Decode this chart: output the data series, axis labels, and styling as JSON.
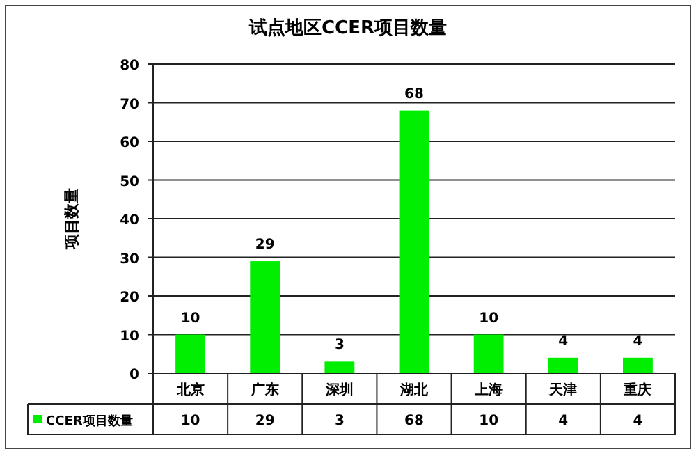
{
  "chart_data": {
    "type": "bar",
    "title": "试点地区CCER项目数量",
    "ylabel": "项目数量",
    "categories": [
      "北京",
      "广东",
      "深圳",
      "湖北",
      "上海",
      "天津",
      "重庆"
    ],
    "series": [
      {
        "name": "CCER项目数量",
        "color": "#00ee00",
        "values": [
          10,
          29,
          3,
          68,
          10,
          4,
          4
        ]
      }
    ],
    "ylim": [
      0,
      80
    ],
    "yticks": [
      0,
      10,
      20,
      30,
      40,
      50,
      60,
      70,
      80
    ],
    "annotations": [
      "10",
      "29",
      "3",
      "68",
      "10",
      "4",
      "4"
    ],
    "grid": "y",
    "legend": "bottom",
    "data_labels": true
  }
}
